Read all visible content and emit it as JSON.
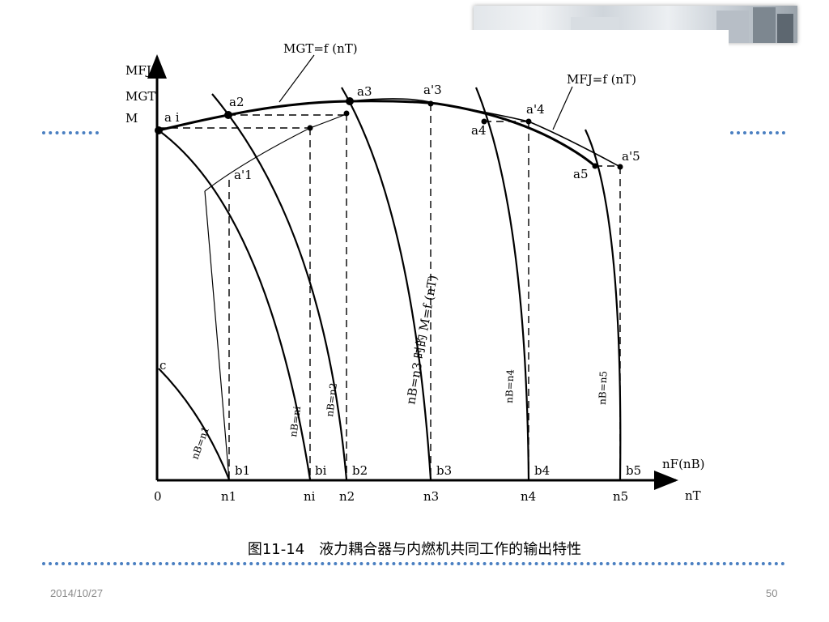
{
  "figure": {
    "axis_y_labels": [
      "MFJ",
      "MGT",
      "M"
    ],
    "axis_x_labels": [
      "nF(nB)",
      "nT"
    ],
    "origin": "0",
    "tick_labels": [
      "n1",
      "ni",
      "n2",
      "n3",
      "n4",
      "n5"
    ],
    "b_labels": [
      "b1",
      "bi",
      "b2",
      "b3",
      "b4",
      "b5"
    ],
    "point_labels": [
      "a i",
      "a2",
      "a3",
      "a'3",
      "a'4",
      "a4",
      "a'5",
      "a5",
      "a'1"
    ],
    "c_label": "c",
    "curve_labels": {
      "gt": "MGT=f (nT)",
      "fj": "MFJ=f (nT)",
      "nb1": "nB=n1",
      "nbi": "nB=ni",
      "nb2": "nB=n2",
      "nb3": "nB=n3 时的 M=f (nT)",
      "nb4": "nB=n4",
      "nb5": "nB=n5"
    }
  },
  "caption": "图11-14　液力耦合器与内燃机共同工作的输出特性",
  "footer": {
    "date": "2014/10/27",
    "page": "50"
  }
}
